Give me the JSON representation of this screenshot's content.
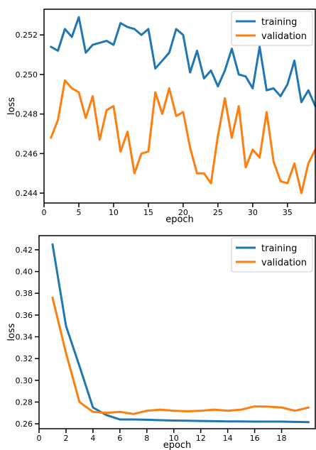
{
  "chart_data": [
    {
      "type": "line",
      "xlabel": "epoch",
      "ylabel": "loss",
      "xlim": [
        0,
        39
      ],
      "ylim": [
        0.2435,
        0.2533
      ],
      "xticks": [
        0,
        5,
        10,
        15,
        20,
        25,
        30,
        35
      ],
      "yticks": [
        0.244,
        0.246,
        0.248,
        0.25,
        0.252
      ],
      "ytick_labels": [
        "0.244",
        "0.246",
        "0.248",
        "0.250",
        "0.252"
      ],
      "x": [
        1,
        2,
        3,
        4,
        5,
        6,
        7,
        8,
        9,
        10,
        11,
        12,
        13,
        14,
        15,
        16,
        17,
        18,
        19,
        20,
        21,
        22,
        23,
        24,
        25,
        26,
        27,
        28,
        29,
        30,
        31,
        32,
        33,
        34,
        35,
        36,
        37,
        38,
        39
      ],
      "legend_position": "top-right",
      "grid": false,
      "series": [
        {
          "name": "training",
          "color": "#1f77b4",
          "values": [
            0.2514,
            0.2512,
            0.2523,
            0.2519,
            0.2529,
            0.2511,
            0.2515,
            0.2516,
            0.2517,
            0.2515,
            0.2526,
            0.2524,
            0.2523,
            0.252,
            0.2523,
            0.2503,
            0.2507,
            0.2511,
            0.2523,
            0.252,
            0.2501,
            0.2512,
            0.2498,
            0.2502,
            0.2494,
            0.2502,
            0.2513,
            0.25,
            0.2499,
            0.2493,
            0.2514,
            0.2492,
            0.2493,
            0.2489,
            0.2495,
            0.2507,
            0.2486,
            0.2492,
            0.2484
          ]
        },
        {
          "name": "validation",
          "color": "#ff7f0e",
          "values": [
            0.2468,
            0.2477,
            0.2497,
            0.2493,
            0.2491,
            0.2478,
            0.2489,
            0.2467,
            0.2482,
            0.2484,
            0.2461,
            0.2471,
            0.245,
            0.246,
            0.2461,
            0.2491,
            0.248,
            0.2493,
            0.2479,
            0.2481,
            0.2463,
            0.245,
            0.245,
            0.2445,
            0.2469,
            0.2488,
            0.2468,
            0.2484,
            0.2453,
            0.2462,
            0.2458,
            0.2481,
            0.2456,
            0.2446,
            0.2445,
            0.2455,
            0.244,
            0.2455,
            0.2462
          ]
        }
      ]
    },
    {
      "type": "line",
      "xlabel": "epoch",
      "ylabel": "loss",
      "xlim": [
        0,
        20.5
      ],
      "ylim": [
        0.2555,
        0.433
      ],
      "xticks": [
        0,
        2,
        4,
        6,
        8,
        10,
        12,
        14,
        16,
        18
      ],
      "yticks": [
        0.26,
        0.28,
        0.3,
        0.32,
        0.34,
        0.36,
        0.38,
        0.4,
        0.42
      ],
      "ytick_labels": [
        "0.26",
        "0.28",
        "0.30",
        "0.32",
        "0.34",
        "0.36",
        "0.38",
        "0.40",
        "0.42"
      ],
      "x": [
        1,
        2,
        3,
        4,
        5,
        6,
        7,
        8,
        9,
        10,
        11,
        12,
        13,
        14,
        15,
        16,
        17,
        18,
        19,
        20
      ],
      "legend_position": "top-right",
      "grid": false,
      "series": [
        {
          "name": "training",
          "color": "#1f77b4",
          "values": [
            0.425,
            0.35,
            0.313,
            0.275,
            0.268,
            0.264,
            0.264,
            0.2637,
            0.2633,
            0.263,
            0.2628,
            0.2626,
            0.2624,
            0.2622,
            0.2622,
            0.262,
            0.262,
            0.262,
            0.2618,
            0.2615
          ]
        },
        {
          "name": "validation",
          "color": "#ff7f0e",
          "values": [
            0.376,
            0.325,
            0.28,
            0.271,
            0.27,
            0.271,
            0.269,
            0.272,
            0.273,
            0.272,
            0.2715,
            0.272,
            0.273,
            0.272,
            0.273,
            0.276,
            0.2758,
            0.275,
            0.272,
            0.275
          ]
        }
      ]
    }
  ]
}
